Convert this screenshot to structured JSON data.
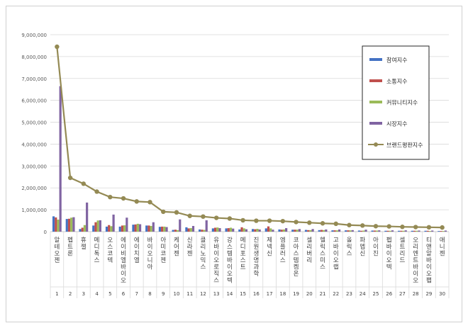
{
  "chart_data": {
    "type": "bar",
    "y_ticks": [
      "0",
      "1,000,000",
      "2,000,000",
      "3,000,000",
      "4,000,000",
      "5,000,000",
      "6,000,000",
      "7,000,000",
      "8,000,000",
      "9,000,000"
    ],
    "ylim": [
      0,
      9000000
    ],
    "grid": true,
    "legend_position": "right",
    "categories": [
      "알테오젠",
      "펩트론",
      "휴젤",
      "메디톡스",
      "오스코텍",
      "에이비엘바이오",
      "에이치엘",
      "바이오니아",
      "아미코젠",
      "케어젠",
      "신라젠",
      "클리노믹스",
      "유바이오로직스",
      "강스템바이오텍",
      "메디포스트",
      "진원생명과학",
      "제넥신",
      "엠플러스",
      "코아스템켐온",
      "셀리버리",
      "헬릭스미스",
      "고바이오랩",
      "올릭스",
      "파멥신",
      "아이진",
      "펩바이오텍",
      "셀트리드",
      "오리엔트바이오",
      "티앤알바이오팹",
      "애니젠"
    ],
    "ranks": [
      "1",
      "2",
      "3",
      "4",
      "5",
      "6",
      "7",
      "8",
      "9",
      "10",
      "11",
      "12",
      "13",
      "14",
      "15",
      "16",
      "17",
      "18",
      "19",
      "20",
      "21",
      "22",
      "23",
      "24",
      "25",
      "26",
      "27",
      "28",
      "29",
      "30"
    ],
    "series": [
      {
        "name": "참여지수",
        "color": "#4472c4",
        "values": [
          700000,
          580000,
          120000,
          280000,
          230000,
          230000,
          320000,
          280000,
          220000,
          80000,
          200000,
          100000,
          150000,
          150000,
          100000,
          120000,
          150000,
          100000,
          90000,
          80000,
          70000,
          60000,
          60000,
          50000,
          50000,
          40000,
          40000,
          40000,
          40000,
          30000
        ]
      },
      {
        "name": "소통지수",
        "color": "#c0504d",
        "values": [
          650000,
          590000,
          180000,
          430000,
          300000,
          280000,
          330000,
          280000,
          230000,
          90000,
          150000,
          90000,
          180000,
          160000,
          200000,
          110000,
          240000,
          90000,
          90000,
          70000,
          80000,
          60000,
          60000,
          40000,
          50000,
          40000,
          40000,
          40000,
          40000,
          30000
        ]
      },
      {
        "name": "커뮤니티지수",
        "color": "#9bbb59",
        "values": [
          550000,
          640000,
          300000,
          510000,
          250000,
          290000,
          360000,
          260000,
          230000,
          70000,
          160000,
          80000,
          190000,
          180000,
          150000,
          130000,
          150000,
          100000,
          90000,
          70000,
          70000,
          60000,
          60000,
          50000,
          50000,
          40000,
          40000,
          40000,
          30000,
          30000
        ]
      },
      {
        "name": "시장지수",
        "color": "#8064a2",
        "values": [
          6650000,
          660000,
          1330000,
          520000,
          780000,
          640000,
          340000,
          430000,
          210000,
          560000,
          260000,
          520000,
          160000,
          140000,
          110000,
          100000,
          90000,
          160000,
          120000,
          120000,
          100000,
          100000,
          70000,
          90000,
          60000,
          60000,
          60000,
          50000,
          50000,
          50000
        ]
      },
      {
        "name": "브랜드평판지수",
        "color": "#948a54",
        "values": [
          8450000,
          2460000,
          2190000,
          1830000,
          1580000,
          1520000,
          1380000,
          1350000,
          910000,
          880000,
          720000,
          690000,
          630000,
          600000,
          520000,
          500000,
          500000,
          480000,
          440000,
          410000,
          380000,
          360000,
          300000,
          280000,
          250000,
          240000,
          220000,
          210000,
          200000,
          190000
        ]
      }
    ]
  }
}
